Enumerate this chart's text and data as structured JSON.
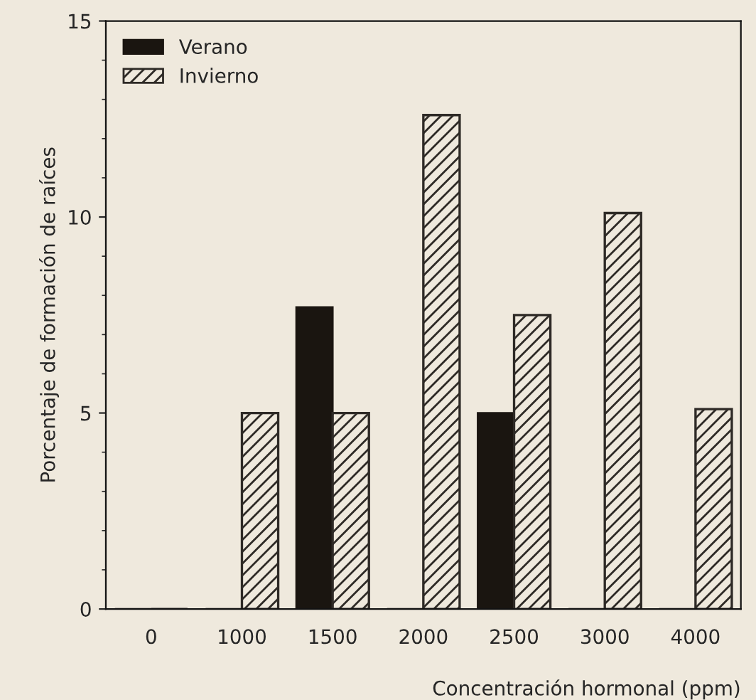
{
  "chart_data": {
    "type": "bar",
    "xlabel": "Concentración hormonal (ppm)",
    "ylabel": "Porcentaje de formación de raíces",
    "categories": [
      "0",
      "1000",
      "1500",
      "2000",
      "2500",
      "3000",
      "4000"
    ],
    "series": [
      {
        "name": "Verano",
        "color": "#1a1510",
        "values": [
          0,
          0,
          7.7,
          0,
          5.0,
          0,
          0
        ]
      },
      {
        "name": "Invierno",
        "color": "#2e2a26",
        "values": [
          0,
          5.0,
          5.0,
          12.6,
          7.5,
          10.1,
          5.1
        ]
      }
    ],
    "ylim": [
      0,
      15
    ],
    "yticks": [
      0,
      5,
      10,
      15
    ],
    "grid": false,
    "legend": "top left"
  }
}
